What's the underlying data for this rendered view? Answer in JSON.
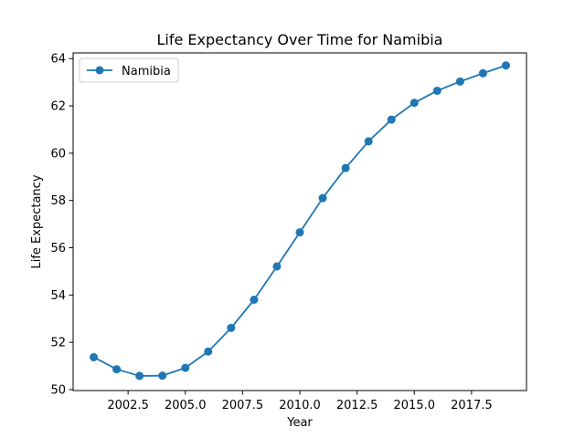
{
  "chart_data": {
    "type": "line",
    "title": "Life Expectancy Over Time for Namibia",
    "xlabel": "Year",
    "ylabel": "Life Expectancy",
    "xlim": [
      2000.1,
      2019.9
    ],
    "ylim": [
      49.96,
      64.24
    ],
    "x_ticks": [
      2002.5,
      2005.0,
      2007.5,
      2010.0,
      2012.5,
      2015.0,
      2017.5
    ],
    "x_tick_labels": [
      "2002.5",
      "2005.0",
      "2007.5",
      "2010.0",
      "2012.5",
      "2015.0",
      "2017.5"
    ],
    "y_ticks": [
      50,
      52,
      54,
      56,
      58,
      60,
      62,
      64
    ],
    "y_tick_labels": [
      "50",
      "52",
      "54",
      "56",
      "58",
      "60",
      "62",
      "64"
    ],
    "grid": false,
    "legend_position": "top-left",
    "series": [
      {
        "name": "Namibia",
        "color": "#1f77b4",
        "marker": "circle",
        "x": [
          2001,
          2002,
          2003,
          2004,
          2005,
          2006,
          2007,
          2008,
          2009,
          2010,
          2011,
          2012,
          2013,
          2014,
          2015,
          2016,
          2017,
          2018,
          2019
        ],
        "y": [
          51.37,
          50.86,
          50.58,
          50.59,
          50.92,
          51.61,
          52.61,
          53.8,
          55.21,
          56.65,
          58.1,
          59.37,
          60.5,
          61.42,
          62.13,
          62.64,
          63.03,
          63.38,
          63.71
        ]
      }
    ]
  }
}
